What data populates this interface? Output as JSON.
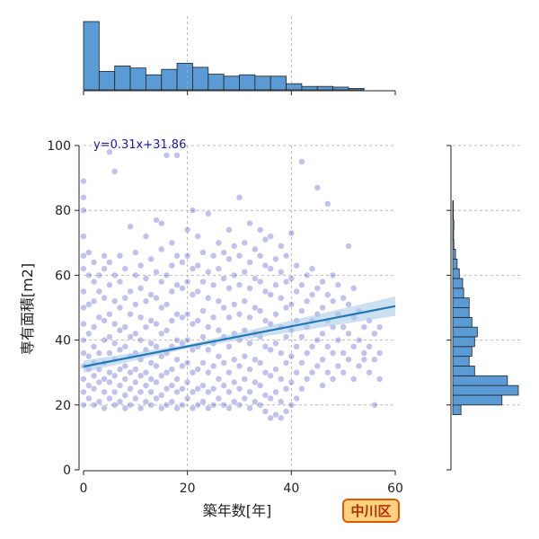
{
  "chart_data": {
    "type": "scatter",
    "xlabel": "築年数[年]",
    "ylabel": "専有面積[m2]",
    "xlim": [
      0,
      60
    ],
    "ylim": [
      0,
      100
    ],
    "x_ticks": [
      0,
      20,
      40,
      60
    ],
    "y_ticks": [
      0,
      20,
      40,
      60,
      80,
      100
    ],
    "grid": true,
    "regression": {
      "slope": 0.31,
      "intercept": 31.86,
      "label": "y=0.31x+31.86",
      "x_range": [
        0,
        60
      ]
    },
    "badge": "中川区",
    "colors": {
      "points": "#2020c0",
      "line": "#1f77b4",
      "band": "#aacbe8",
      "hist_fill": "#5b9bd5",
      "hist_edge": "#222222",
      "badge_bg": "#ffd27f",
      "badge_border": "#e05a00"
    },
    "top_histogram": {
      "bin_width": 3,
      "x_start": 0,
      "counts": [
        100,
        27,
        35,
        32,
        22,
        30,
        39,
        33,
        23,
        20,
        22,
        20,
        20,
        9,
        5,
        5,
        4,
        2
      ]
    },
    "right_histogram": {
      "bin_width": 3,
      "y_start": 17,
      "counts": [
        1.5,
        9,
        12,
        10,
        4,
        3,
        3.5,
        4,
        4.5,
        3.5,
        3,
        3,
        2,
        1.8,
        1.2,
        0.8,
        0.5,
        0.2,
        0.15,
        0.2,
        0.1,
        0.1
      ]
    },
    "points": [
      [
        0,
        20
      ],
      [
        0,
        24
      ],
      [
        0,
        28
      ],
      [
        0,
        32
      ],
      [
        0,
        36
      ],
      [
        0,
        40
      ],
      [
        0,
        45
      ],
      [
        0,
        50
      ],
      [
        0,
        55
      ],
      [
        0,
        62
      ],
      [
        0,
        66
      ],
      [
        0,
        72
      ],
      [
        0,
        80
      ],
      [
        0,
        84
      ],
      [
        0,
        89
      ],
      [
        1,
        22
      ],
      [
        1,
        26
      ],
      [
        1,
        31
      ],
      [
        1,
        35
      ],
      [
        1,
        42
      ],
      [
        1,
        51
      ],
      [
        1,
        60
      ],
      [
        1,
        67
      ],
      [
        2,
        20
      ],
      [
        2,
        25
      ],
      [
        2,
        29
      ],
      [
        2,
        33
      ],
      [
        2,
        38
      ],
      [
        2,
        44
      ],
      [
        2,
        52
      ],
      [
        2,
        58
      ],
      [
        2,
        64
      ],
      [
        3,
        21
      ],
      [
        3,
        27
      ],
      [
        3,
        31
      ],
      [
        3,
        36
      ],
      [
        3,
        47
      ],
      [
        3,
        55
      ],
      [
        3,
        60
      ],
      [
        4,
        19
      ],
      [
        4,
        24
      ],
      [
        4,
        28
      ],
      [
        4,
        33
      ],
      [
        4,
        40
      ],
      [
        4,
        46
      ],
      [
        4,
        53
      ],
      [
        4,
        62
      ],
      [
        4,
        66
      ],
      [
        5,
        22
      ],
      [
        5,
        27
      ],
      [
        5,
        30
      ],
      [
        5,
        36
      ],
      [
        5,
        41
      ],
      [
        5,
        48
      ],
      [
        5,
        57
      ],
      [
        5,
        64
      ],
      [
        5,
        98
      ],
      [
        6,
        20
      ],
      [
        6,
        24
      ],
      [
        6,
        29
      ],
      [
        6,
        34
      ],
      [
        6,
        39
      ],
      [
        6,
        45
      ],
      [
        6,
        52
      ],
      [
        6,
        60
      ],
      [
        6,
        92
      ],
      [
        7,
        21
      ],
      [
        7,
        26
      ],
      [
        7,
        31
      ],
      [
        7,
        37
      ],
      [
        7,
        43
      ],
      [
        7,
        50
      ],
      [
        7,
        58
      ],
      [
        7,
        66
      ],
      [
        8,
        19
      ],
      [
        8,
        23
      ],
      [
        8,
        28
      ],
      [
        8,
        32
      ],
      [
        8,
        38
      ],
      [
        8,
        44
      ],
      [
        8,
        53
      ],
      [
        8,
        62
      ],
      [
        9,
        20
      ],
      [
        9,
        25
      ],
      [
        9,
        30
      ],
      [
        9,
        35
      ],
      [
        9,
        41
      ],
      [
        9,
        48
      ],
      [
        9,
        55
      ],
      [
        9,
        75
      ],
      [
        10,
        22
      ],
      [
        10,
        27
      ],
      [
        10,
        31
      ],
      [
        10,
        36
      ],
      [
        10,
        42
      ],
      [
        10,
        51
      ],
      [
        10,
        60
      ],
      [
        10,
        67
      ],
      [
        11,
        19
      ],
      [
        11,
        24
      ],
      [
        11,
        29
      ],
      [
        11,
        34
      ],
      [
        11,
        40
      ],
      [
        11,
        47
      ],
      [
        11,
        56
      ],
      [
        11,
        63
      ],
      [
        12,
        21
      ],
      [
        12,
        26
      ],
      [
        12,
        30
      ],
      [
        12,
        37
      ],
      [
        12,
        44
      ],
      [
        12,
        52
      ],
      [
        12,
        59
      ],
      [
        12,
        72
      ],
      [
        13,
        20
      ],
      [
        13,
        24
      ],
      [
        13,
        28
      ],
      [
        13,
        33
      ],
      [
        13,
        39
      ],
      [
        13,
        46
      ],
      [
        13,
        54
      ],
      [
        13,
        65
      ],
      [
        14,
        22
      ],
      [
        14,
        27
      ],
      [
        14,
        32
      ],
      [
        14,
        38
      ],
      [
        14,
        45
      ],
      [
        14,
        53
      ],
      [
        14,
        61
      ],
      [
        14,
        77
      ],
      [
        15,
        19
      ],
      [
        15,
        23
      ],
      [
        15,
        29
      ],
      [
        15,
        35
      ],
      [
        15,
        42
      ],
      [
        15,
        50
      ],
      [
        15,
        58
      ],
      [
        15,
        68
      ],
      [
        15,
        76
      ],
      [
        16,
        20
      ],
      [
        16,
        25
      ],
      [
        16,
        30
      ],
      [
        16,
        36
      ],
      [
        16,
        43
      ],
      [
        16,
        51
      ],
      [
        16,
        60
      ],
      [
        16,
        97
      ],
      [
        17,
        21
      ],
      [
        17,
        26
      ],
      [
        17,
        31
      ],
      [
        17,
        38
      ],
      [
        17,
        46
      ],
      [
        17,
        55
      ],
      [
        17,
        63
      ],
      [
        17,
        70
      ],
      [
        18,
        19
      ],
      [
        18,
        24
      ],
      [
        18,
        28
      ],
      [
        18,
        34
      ],
      [
        18,
        40
      ],
      [
        18,
        48
      ],
      [
        18,
        57
      ],
      [
        18,
        66
      ],
      [
        18,
        97
      ],
      [
        19,
        20
      ],
      [
        19,
        25
      ],
      [
        19,
        32
      ],
      [
        19,
        39
      ],
      [
        19,
        47
      ],
      [
        19,
        56
      ],
      [
        19,
        64
      ],
      [
        20,
        22
      ],
      [
        20,
        27
      ],
      [
        20,
        33
      ],
      [
        20,
        40
      ],
      [
        20,
        48
      ],
      [
        20,
        58
      ],
      [
        20,
        66
      ],
      [
        20,
        74
      ],
      [
        21,
        19
      ],
      [
        21,
        24
      ],
      [
        21,
        30
      ],
      [
        21,
        37
      ],
      [
        21,
        45
      ],
      [
        21,
        54
      ],
      [
        21,
        62
      ],
      [
        21,
        80
      ],
      [
        22,
        20
      ],
      [
        22,
        25
      ],
      [
        22,
        31
      ],
      [
        22,
        38
      ],
      [
        22,
        46
      ],
      [
        22,
        55
      ],
      [
        22,
        63
      ],
      [
        22,
        72
      ],
      [
        23,
        21
      ],
      [
        23,
        26
      ],
      [
        23,
        33
      ],
      [
        23,
        41
      ],
      [
        23,
        49
      ],
      [
        23,
        58
      ],
      [
        23,
        67
      ],
      [
        24,
        19
      ],
      [
        24,
        24
      ],
      [
        24,
        30
      ],
      [
        24,
        37
      ],
      [
        24,
        44
      ],
      [
        24,
        53
      ],
      [
        24,
        61
      ],
      [
        24,
        79
      ],
      [
        25,
        20
      ],
      [
        25,
        25
      ],
      [
        25,
        32
      ],
      [
        25,
        39
      ],
      [
        25,
        47
      ],
      [
        25,
        57
      ],
      [
        25,
        66
      ],
      [
        26,
        22
      ],
      [
        26,
        28
      ],
      [
        26,
        35
      ],
      [
        26,
        43
      ],
      [
        26,
        52
      ],
      [
        26,
        62
      ],
      [
        26,
        70
      ],
      [
        27,
        20
      ],
      [
        27,
        26
      ],
      [
        27,
        33
      ],
      [
        27,
        41
      ],
      [
        27,
        50
      ],
      [
        27,
        59
      ],
      [
        27,
        67
      ],
      [
        28,
        19
      ],
      [
        28,
        24
      ],
      [
        28,
        30
      ],
      [
        28,
        38
      ],
      [
        28,
        47
      ],
      [
        28,
        56
      ],
      [
        28,
        65
      ],
      [
        28,
        74
      ],
      [
        29,
        21
      ],
      [
        29,
        27
      ],
      [
        29,
        34
      ],
      [
        29,
        42
      ],
      [
        29,
        51
      ],
      [
        29,
        60
      ],
      [
        29,
        69
      ],
      [
        30,
        20
      ],
      [
        30,
        25
      ],
      [
        30,
        32
      ],
      [
        30,
        40
      ],
      [
        30,
        48
      ],
      [
        30,
        57
      ],
      [
        30,
        66
      ],
      [
        30,
        84
      ],
      [
        31,
        22
      ],
      [
        31,
        28
      ],
      [
        31,
        35
      ],
      [
        31,
        43
      ],
      [
        31,
        52
      ],
      [
        31,
        61
      ],
      [
        31,
        70
      ],
      [
        32,
        19
      ],
      [
        32,
        24
      ],
      [
        32,
        31
      ],
      [
        32,
        39
      ],
      [
        32,
        47
      ],
      [
        32,
        56
      ],
      [
        32,
        64
      ],
      [
        32,
        76
      ],
      [
        33,
        21
      ],
      [
        33,
        27
      ],
      [
        33,
        34
      ],
      [
        33,
        42
      ],
      [
        33,
        50
      ],
      [
        33,
        59
      ],
      [
        33,
        68
      ],
      [
        34,
        20
      ],
      [
        34,
        26
      ],
      [
        34,
        33
      ],
      [
        34,
        41
      ],
      [
        34,
        49
      ],
      [
        34,
        58
      ],
      [
        34,
        66
      ],
      [
        34,
        74
      ],
      [
        35,
        18
      ],
      [
        35,
        23
      ],
      [
        35,
        30
      ],
      [
        35,
        38
      ],
      [
        35,
        46
      ],
      [
        35,
        55
      ],
      [
        35,
        63
      ],
      [
        35,
        71
      ],
      [
        36,
        16
      ],
      [
        36,
        22
      ],
      [
        36,
        29
      ],
      [
        36,
        37
      ],
      [
        36,
        45
      ],
      [
        36,
        54
      ],
      [
        36,
        62
      ],
      [
        36,
        72
      ],
      [
        37,
        17
      ],
      [
        37,
        24
      ],
      [
        37,
        31
      ],
      [
        37,
        39
      ],
      [
        37,
        48
      ],
      [
        37,
        57
      ],
      [
        37,
        65
      ],
      [
        38,
        16
      ],
      [
        38,
        21
      ],
      [
        38,
        28
      ],
      [
        38,
        36
      ],
      [
        38,
        44
      ],
      [
        38,
        53
      ],
      [
        38,
        61
      ],
      [
        38,
        69
      ],
      [
        39,
        18
      ],
      [
        39,
        25
      ],
      [
        39,
        33
      ],
      [
        39,
        41
      ],
      [
        39,
        50
      ],
      [
        39,
        58
      ],
      [
        39,
        66
      ],
      [
        40,
        20
      ],
      [
        40,
        27
      ],
      [
        40,
        35
      ],
      [
        40,
        43
      ],
      [
        40,
        51
      ],
      [
        40,
        59
      ],
      [
        40,
        73
      ],
      [
        41,
        22
      ],
      [
        41,
        30
      ],
      [
        41,
        38
      ],
      [
        41,
        46
      ],
      [
        41,
        55
      ],
      [
        41,
        63
      ],
      [
        42,
        25
      ],
      [
        42,
        33
      ],
      [
        42,
        41
      ],
      [
        42,
        49
      ],
      [
        42,
        57
      ],
      [
        42,
        95
      ],
      [
        43,
        28
      ],
      [
        43,
        36
      ],
      [
        43,
        44
      ],
      [
        43,
        52
      ],
      [
        43,
        60
      ],
      [
        44,
        30
      ],
      [
        44,
        38
      ],
      [
        44,
        46
      ],
      [
        44,
        54
      ],
      [
        44,
        62
      ],
      [
        45,
        32
      ],
      [
        45,
        40
      ],
      [
        45,
        48
      ],
      [
        45,
        56
      ],
      [
        45,
        87
      ],
      [
        46,
        26
      ],
      [
        46,
        34
      ],
      [
        46,
        42
      ],
      [
        46,
        50
      ],
      [
        46,
        58
      ],
      [
        47,
        30
      ],
      [
        47,
        38
      ],
      [
        47,
        46
      ],
      [
        47,
        54
      ],
      [
        47,
        82
      ],
      [
        48,
        28
      ],
      [
        48,
        36
      ],
      [
        48,
        44
      ],
      [
        48,
        52
      ],
      [
        48,
        60
      ],
      [
        49,
        32
      ],
      [
        49,
        40
      ],
      [
        49,
        48
      ],
      [
        49,
        57
      ],
      [
        50,
        30
      ],
      [
        50,
        36
      ],
      [
        50,
        44
      ],
      [
        50,
        53
      ],
      [
        51,
        34
      ],
      [
        51,
        42
      ],
      [
        51,
        51
      ],
      [
        51,
        69
      ],
      [
        52,
        28
      ],
      [
        52,
        38
      ],
      [
        52,
        47
      ],
      [
        52,
        56
      ],
      [
        53,
        32
      ],
      [
        53,
        40
      ],
      [
        53,
        49
      ],
      [
        54,
        36
      ],
      [
        54,
        44
      ],
      [
        54,
        34
      ],
      [
        55,
        30
      ],
      [
        55,
        38
      ],
      [
        55,
        46
      ],
      [
        56,
        20
      ],
      [
        56,
        34
      ],
      [
        56,
        42
      ],
      [
        57,
        28
      ],
      [
        57,
        36
      ],
      [
        57,
        44
      ]
    ]
  }
}
